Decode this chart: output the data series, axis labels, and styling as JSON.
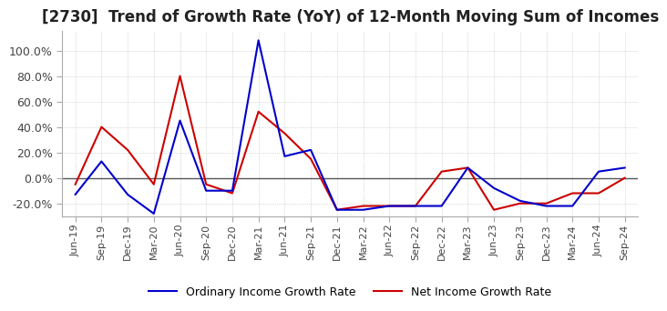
{
  "title": "[2730]  Trend of Growth Rate (YoY) of 12-Month Moving Sum of Incomes",
  "title_fontsize": 12,
  "ylim": [
    -30,
    115
  ],
  "yticks": [
    -20.0,
    0.0,
    20.0,
    40.0,
    60.0,
    80.0,
    100.0
  ],
  "ytick_labels": [
    "-20.0%",
    "0.0%",
    "20.0%",
    "40.0%",
    "60.0%",
    "80.0%",
    "100.0%"
  ],
  "background_color": "#ffffff",
  "grid_color": "#bbbbbb",
  "line1_color": "#0000cc",
  "line2_color": "#cc0000",
  "legend1": "Ordinary Income Growth Rate",
  "legend2": "Net Income Growth Rate",
  "dates": [
    "Jun-19",
    "Sep-19",
    "Dec-19",
    "Mar-20",
    "Jun-20",
    "Sep-20",
    "Dec-20",
    "Mar-21",
    "Jun-21",
    "Sep-21",
    "Dec-21",
    "Mar-22",
    "Jun-22",
    "Sep-22",
    "Dec-22",
    "Mar-23",
    "Jun-23",
    "Sep-23",
    "Dec-23",
    "Mar-24",
    "Jun-24",
    "Sep-24"
  ],
  "ordinary_income": [
    -13.0,
    13.0,
    -13.0,
    -28.0,
    45.0,
    -10.0,
    -10.0,
    108.0,
    17.0,
    22.0,
    -25.0,
    -25.0,
    -22.0,
    -22.0,
    -22.0,
    8.0,
    -8.0,
    -18.0,
    -22.0,
    -22.0,
    5.0,
    8.0
  ],
  "net_income": [
    -5.0,
    40.0,
    22.0,
    -5.0,
    80.0,
    -5.0,
    -12.0,
    52.0,
    35.0,
    15.0,
    -25.0,
    -22.0,
    -22.0,
    -22.0,
    5.0,
    8.0,
    -25.0,
    -20.0,
    -20.0,
    -12.0,
    -12.0,
    0.0
  ]
}
